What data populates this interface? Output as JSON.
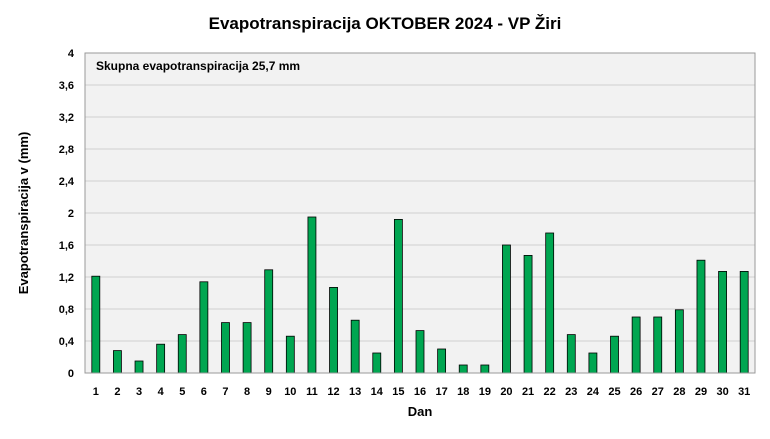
{
  "chart_data": {
    "type": "bar",
    "title": "Evapotranspiracija  OKTOBER  2024 - VP Žiri",
    "xlabel": "Dan",
    "ylabel": "Evapotranspiracija v  (mm)",
    "annotation": "Skupna evapotranspiracija  25,7 mm",
    "ylim": [
      0,
      4
    ],
    "yticks": [
      "0",
      "0,4",
      "0,8",
      "1,2",
      "1,6",
      "2",
      "2,4",
      "2,8",
      "3,2",
      "3,6",
      "4"
    ],
    "categories": [
      "1",
      "2",
      "3",
      "4",
      "5",
      "6",
      "7",
      "8",
      "9",
      "10",
      "11",
      "12",
      "13",
      "14",
      "15",
      "16",
      "17",
      "18",
      "19",
      "20",
      "21",
      "22",
      "23",
      "24",
      "25",
      "26",
      "27",
      "28",
      "29",
      "30",
      "31"
    ],
    "values": [
      1.21,
      0.28,
      0.15,
      0.36,
      0.48,
      1.14,
      0.63,
      0.63,
      1.29,
      0.46,
      1.95,
      1.07,
      0.66,
      0.25,
      1.92,
      0.53,
      0.3,
      0.1,
      0.1,
      1.6,
      1.47,
      1.75,
      0.48,
      0.25,
      0.46,
      0.7,
      0.7,
      0.79,
      1.41,
      1.27,
      1.27
    ],
    "grid": true,
    "bar_color": "#00a651",
    "plot_background": "#f2f2f2"
  }
}
